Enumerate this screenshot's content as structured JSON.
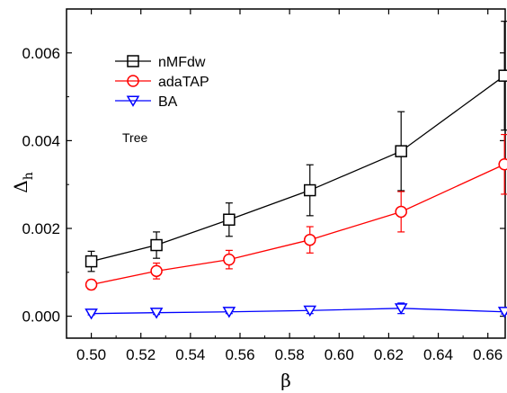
{
  "chart_data": {
    "type": "line",
    "x": [
      0.5,
      0.5263,
      0.5556,
      0.5882,
      0.625,
      0.6667
    ],
    "xlabel": "β",
    "ylabel": "Δ",
    "ylabel_sub": "h",
    "xlim": [
      0.49,
      0.667
    ],
    "ylim": [
      -0.0005,
      0.007
    ],
    "xticks": [
      0.5,
      0.52,
      0.54,
      0.56,
      0.58,
      0.6,
      0.62,
      0.64,
      0.66
    ],
    "xtick_labels": [
      "0.50",
      "0.52",
      "0.54",
      "0.56",
      "0.58",
      "0.60",
      "0.62",
      "0.64",
      "0.66"
    ],
    "yticks": [
      0.0,
      0.002,
      0.004,
      0.006
    ],
    "ytick_labels": [
      "0.000",
      "0.002",
      "0.004",
      "0.006"
    ],
    "grid": false,
    "legend_position": "top-left",
    "annotation": "Tree",
    "series": [
      {
        "name": "nMFdw",
        "color": "#000000",
        "marker": "square",
        "values": [
          0.00125,
          0.00162,
          0.0022,
          0.00287,
          0.00376,
          0.00548
        ],
        "errors": [
          0.00023,
          0.0003,
          0.00038,
          0.00058,
          0.0009,
          0.00124
        ]
      },
      {
        "name": "adaTAP",
        "color": "#ff0000",
        "marker": "circle",
        "values": [
          0.00072,
          0.00103,
          0.00129,
          0.00174,
          0.00238,
          0.00346
        ],
        "errors": [
          0.00011,
          0.00018,
          0.00021,
          0.0003,
          0.00046,
          0.00068
        ]
      },
      {
        "name": "BA",
        "color": "#0000ff",
        "marker": "triangle-down",
        "values": [
          6e-05,
          8e-05,
          0.0001,
          0.00013,
          0.00018,
          0.0001
        ],
        "errors": [
          3e-05,
          4e-05,
          4e-05,
          7e-05,
          0.00012,
          5e-05
        ]
      }
    ]
  }
}
